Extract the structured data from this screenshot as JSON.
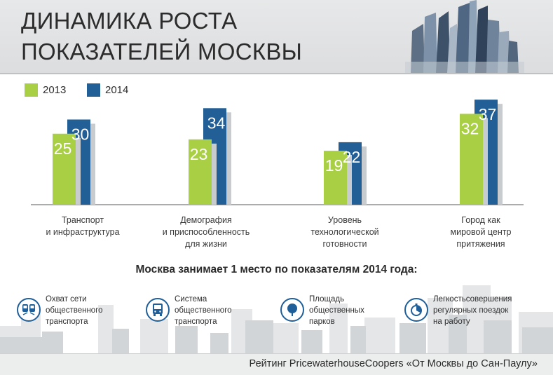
{
  "header": {
    "title_line1": "ДИНАМИКА РОСТА",
    "title_line2": "ПОКАЗАТЕЛЕЙ МОСКВЫ"
  },
  "colors": {
    "bar_2013": "#a9cf45",
    "bar_2014": "#215f96",
    "bar_shadow": "#c9ccce",
    "axis": "#8d9194",
    "label_light": "#ffffff",
    "icon_accent": "#1f5f99"
  },
  "chart_data": {
    "type": "bar",
    "categories": [
      "Транспорт\nи инфраструктура",
      "Демография\nи приспособленность\nдля жизни",
      "Уровень\nтехнологической\nготовности",
      "Город как\nмировой центр\nпритяжения"
    ],
    "series": [
      {
        "name": "2013",
        "values": [
          25,
          23,
          19,
          32
        ]
      },
      {
        "name": "2014",
        "values": [
          30,
          34,
          22,
          37
        ]
      }
    ],
    "data_labels": {
      "2013": [
        "25",
        "23",
        "19",
        "32"
      ],
      "2014": [
        "30",
        "34",
        "22",
        "37"
      ]
    },
    "legend_position": "top-left",
    "ylim": [
      0,
      40
    ],
    "grid": false
  },
  "rank": {
    "heading": "Москва занимает 1 место по показателям 2014 года:",
    "items": [
      {
        "icon": "train-icon",
        "text": "Охват сети\nобщественного\nтранспорта"
      },
      {
        "icon": "bus-icon",
        "text": "Система\nобщественного\nтранспорта"
      },
      {
        "icon": "tree-icon",
        "text": "Площадь\nобщественных\nпарков"
      },
      {
        "icon": "stopwatch-icon",
        "text": "Легкостьсовершения\nрегулярных поездок\nна работу"
      }
    ]
  },
  "footer": {
    "text": "Рейтинг  PricewaterhouseCoopers «От Москвы до Сан-Паулу»"
  }
}
